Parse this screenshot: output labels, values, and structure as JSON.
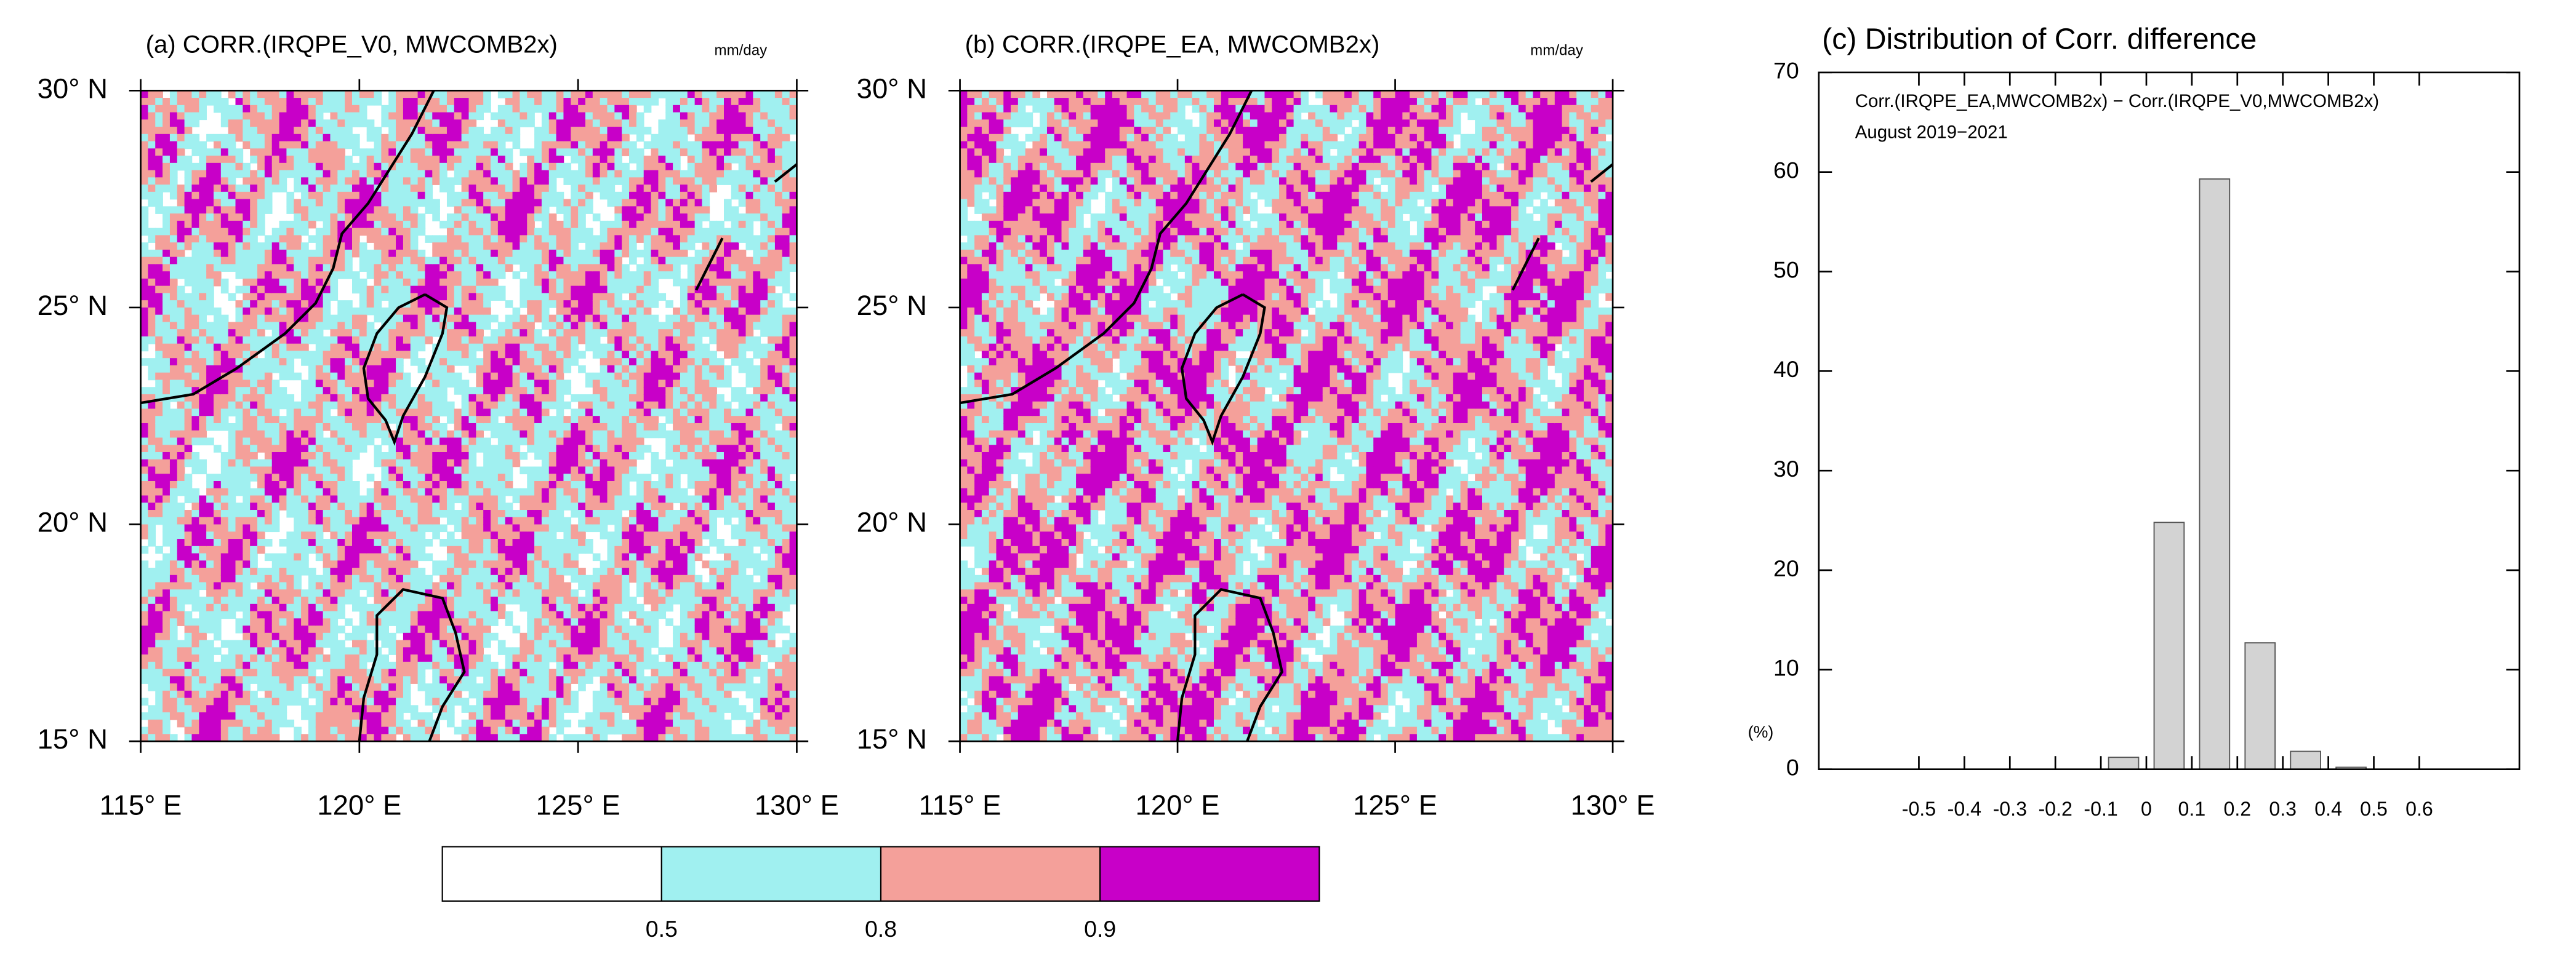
{
  "chart_data": [
    {
      "type": "map",
      "title": "(a) CORR.(IRQPE_V0, MWCOMB2x)",
      "unit": "mm/day",
      "xlim": [
        115,
        130
      ],
      "ylim": [
        15,
        30
      ],
      "xticks": [
        {
          "value": 115,
          "label": "115° E"
        },
        {
          "value": 120,
          "label": "120° E"
        },
        {
          "value": 125,
          "label": "125° E"
        },
        {
          "value": 130,
          "label": "130° E"
        }
      ],
      "yticks": [
        {
          "value": 15,
          "label": "15° N"
        },
        {
          "value": 20,
          "label": "20° N"
        },
        {
          "value": 25,
          "label": "25° N"
        },
        {
          "value": 30,
          "label": "30° N"
        }
      ]
    },
    {
      "type": "map",
      "title": "(b) CORR.(IRQPE_EA, MWCOMB2x)",
      "unit": "mm/day",
      "xlim": [
        115,
        130
      ],
      "ylim": [
        15,
        30
      ],
      "xticks": [
        {
          "value": 115,
          "label": "115° E"
        },
        {
          "value": 120,
          "label": "120° E"
        },
        {
          "value": 125,
          "label": "125° E"
        },
        {
          "value": 130,
          "label": "130° E"
        }
      ],
      "yticks": [
        {
          "value": 15,
          "label": "15° N"
        },
        {
          "value": 20,
          "label": "20° N"
        },
        {
          "value": 25,
          "label": "25° N"
        },
        {
          "value": 30,
          "label": "30° N"
        }
      ]
    },
    {
      "type": "histogram",
      "title": "(c) Distribution of Corr. difference",
      "annotations": [
        "Corr.(IRQPE_EA,MWCOMB2x) − Corr.(IRQPE_V0,MWCOMB2x)",
        "August 2019−2021"
      ],
      "y_label": "(%)",
      "color": "#d3d3d3",
      "bins": [
        -0.1,
        0,
        0.1,
        0.2,
        0.3,
        0.4,
        0.5
      ],
      "values": [
        1.2,
        24.8,
        59.3,
        12.7,
        1.8,
        0.2
      ],
      "xlim": [
        -0.72,
        0.82
      ],
      "xticks": [
        -0.5,
        -0.4,
        -0.3,
        -0.2,
        -0.1,
        0,
        0.1,
        0.2,
        0.3,
        0.4,
        0.5,
        0.6
      ],
      "ylim": [
        0,
        70
      ],
      "yticks": [
        0,
        10,
        20,
        30,
        40,
        50,
        60,
        70
      ]
    }
  ],
  "colorbar": {
    "levels": [
      0.5,
      0.8,
      0.9
    ],
    "colors": [
      "#ffffff",
      "#a0f0f0",
      "#f4a09a",
      "#c800c8"
    ]
  }
}
